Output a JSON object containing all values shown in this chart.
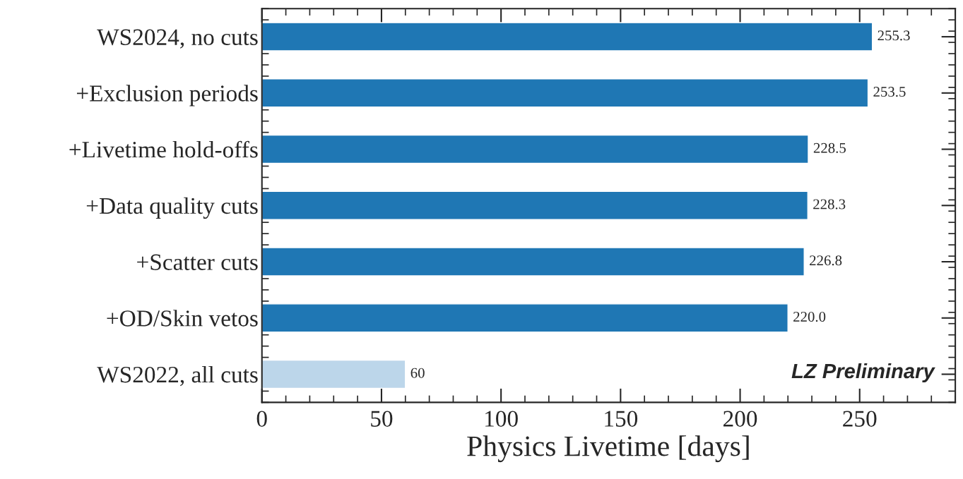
{
  "chart_data": {
    "type": "bar",
    "orientation": "horizontal",
    "xlabel": "Physics Livetime [days]",
    "categories": [
      "WS2024, no cuts",
      "+Exclusion periods",
      "+Livetime hold-offs",
      "+Data quality cuts",
      "+Scatter cuts",
      "+OD/Skin vetos",
      "WS2022, all cuts"
    ],
    "values": [
      255.3,
      253.5,
      228.5,
      228.3,
      226.8,
      220.0,
      60
    ],
    "colors": [
      "#1f77b4",
      "#1f77b4",
      "#1f77b4",
      "#1f77b4",
      "#1f77b4",
      "#1f77b4",
      "#bcd6ea"
    ],
    "value_labels": [
      "255.3",
      "253.5",
      "228.5",
      "228.3",
      "226.8",
      "220.0",
      "60"
    ],
    "xlim": [
      0,
      290
    ],
    "xticks": [
      0,
      50,
      100,
      150,
      200,
      250
    ],
    "annotations": [
      "LZ Preliminary"
    ]
  }
}
